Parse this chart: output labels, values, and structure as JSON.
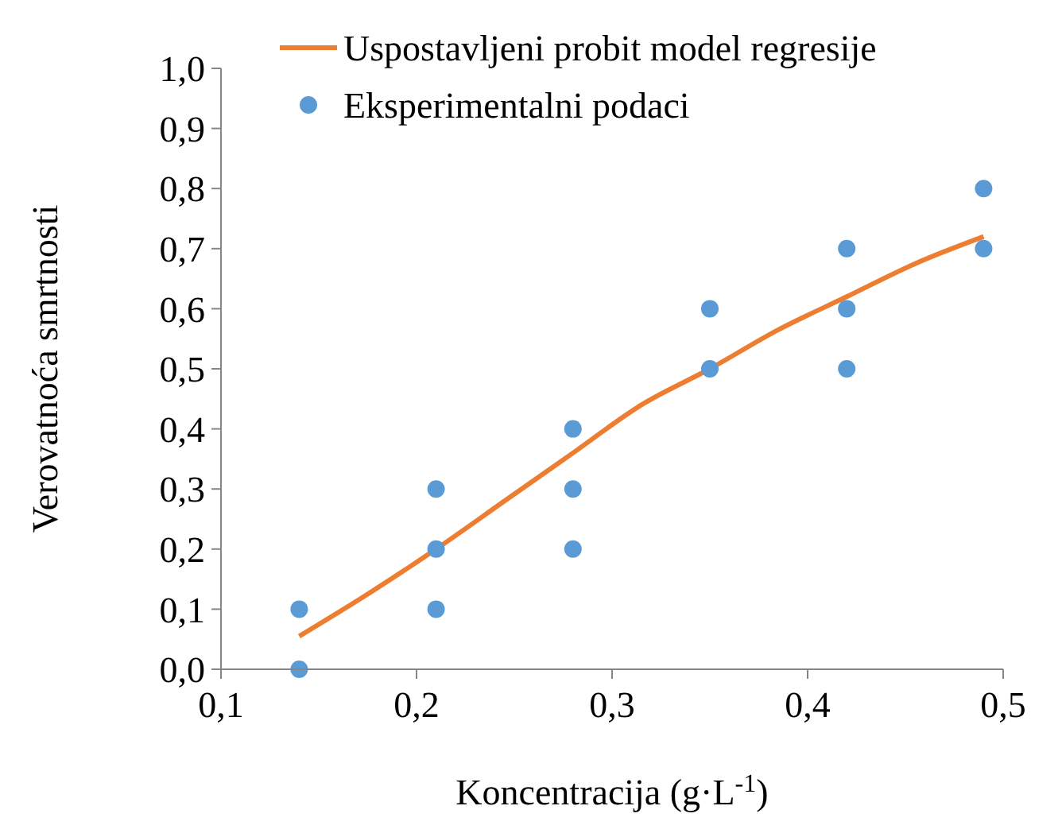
{
  "chart_data": {
    "type": "scatter",
    "xlabel": "Koncentracija (g·L$^{-1}$)",
    "ylabel": "Verovatnoća smrtnosti",
    "xlim": [
      0.1,
      0.5
    ],
    "ylim": [
      0,
      1
    ],
    "xticks": [
      {
        "value": 0.1,
        "label": "0,1"
      },
      {
        "value": 0.2,
        "label": "0,2"
      },
      {
        "value": 0.3,
        "label": "0,3"
      },
      {
        "value": 0.4,
        "label": "0,4"
      },
      {
        "value": 0.5,
        "label": "0,5"
      }
    ],
    "yticks": [
      {
        "value": 0,
        "label": "0,0"
      },
      {
        "value": 0.1,
        "label": "0,1"
      },
      {
        "value": 0.2,
        "label": "0,2"
      },
      {
        "value": 0.3,
        "label": "0,3"
      },
      {
        "value": 0.4,
        "label": "0,4"
      },
      {
        "value": 0.5,
        "label": "0,5"
      },
      {
        "value": 0.6,
        "label": "0,6"
      },
      {
        "value": 0.7,
        "label": "0,7"
      },
      {
        "value": 0.8,
        "label": "0,8"
      },
      {
        "value": 0.9,
        "label": "0,9"
      },
      {
        "value": 1,
        "label": "1,0"
      }
    ],
    "grid": false,
    "legend": "top",
    "marker": "circle",
    "series": [
      {
        "name": "Uspostavljeni probit model regresije",
        "type": "line",
        "marker": "none",
        "color": "#ed7d31",
        "x": [
          0.14,
          0.175,
          0.21,
          0.245,
          0.28,
          0.315,
          0.35,
          0.385,
          0.42,
          0.455,
          0.49
        ],
        "values": [
          0.055,
          0.125,
          0.2,
          0.28,
          0.36,
          0.44,
          0.5,
          0.565,
          0.62,
          0.675,
          0.72
        ]
      },
      {
        "name": "Eksperimentalni podaci",
        "color": "#5b9bd5",
        "x": [
          0.14,
          0.14,
          0.21,
          0.21,
          0.21,
          0.28,
          0.28,
          0.28,
          0.35,
          0.35,
          0.42,
          0.42,
          0.42,
          0.49,
          0.49
        ],
        "values": [
          0.1,
          0,
          0.3,
          0.2,
          0.1,
          0.4,
          0.3,
          0.2,
          0.6,
          0.5,
          0.7,
          0.6,
          0.5,
          0.8,
          0.7
        ]
      }
    ]
  }
}
